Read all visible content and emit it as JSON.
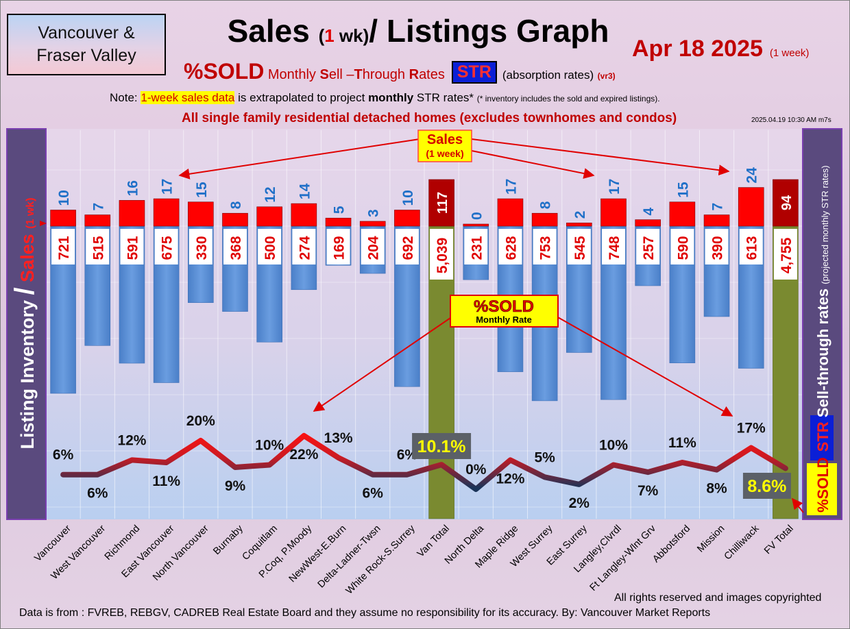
{
  "region_label": "Vancouver & Fraser Valley",
  "title": {
    "part1": "Sales ",
    "part2_open": "(",
    "part2_num": "1",
    "part2_close": " wk)",
    "part3": "/ Listings Graph"
  },
  "date": "Apr 18  2025",
  "date_note": "(1 week)",
  "subtitle": {
    "sold": "%SOLD",
    "text_a": " Monthly ",
    "text_b": "S",
    "text_c": "ell –",
    "text_d": "T",
    "text_e": "hrough ",
    "text_f": "R",
    "text_g": "ates",
    "str": "STR",
    "absorption": "(absorption rates)",
    "version": "(vr3)"
  },
  "note": {
    "label": "Note: ",
    "highlight": "1-week sales data",
    "text1": " is extrapolated to project ",
    "bold": "monthly",
    "text2": " STR rates* ",
    "small": "(* inventory includes the sold and expired listings)."
  },
  "headline": "All single family residential detached homes (excludes townhomes and condos)",
  "timestamp": "2025.04.19 10:30 AM m7s",
  "footer": {
    "rights": "All rights reserved and  images copyrighted",
    "source": "Data is from : FVREB, REBGV, CADREB Real Estate Board and they assume no responsibility for its accuracy. By: Vancouver Market Reports"
  },
  "colors": {
    "inventory_bar": "#5b8fd6",
    "total_bar": "#7a8a30",
    "sales_bar": "#ff0000",
    "sales_total_bar": "#b00000",
    "line_high": "#ff1010",
    "line_low": "#1a3358",
    "side_panel": "#5a4a7e"
  },
  "chart_data": {
    "type": "bar",
    "categories": [
      "Vancouver",
      "West Vancouver",
      "Richmond",
      "East Vancouver",
      "North Vancouver",
      "Burnaby",
      "Coquitlam",
      "P.Coq, P.Moody",
      "NewWest-E.Burn",
      "Delta-Ladner-Twsn",
      "White Rock-S.Surrey",
      "Van Total",
      "North Delta",
      "Maple Ridge",
      "West Surrey",
      "East Surrey",
      "Langley,Clvrdl",
      "Ft Langley-Wlnt Grv",
      "Abbotsford",
      "Mission",
      "Chilliwack",
      "FV Total"
    ],
    "series": [
      {
        "name": "Sales",
        "values": [
          10,
          7,
          16,
          17,
          15,
          8,
          12,
          14,
          5,
          3,
          10,
          117,
          0,
          17,
          8,
          2,
          17,
          4,
          15,
          7,
          24,
          94
        ]
      },
      {
        "name": "Listing Inventory",
        "values": [
          "721",
          "515",
          "591",
          "675",
          "330",
          "368",
          "500",
          "274",
          "169",
          "204",
          "692",
          "5,039",
          "231",
          "628",
          "753",
          "545",
          "748",
          "257",
          "590",
          "390",
          "613",
          "4,755"
        ]
      },
      {
        "name": "%SOLD",
        "values": [
          "6%",
          "6%",
          "12%",
          "11%",
          "20%",
          "9%",
          "10%",
          "22%",
          "13%",
          "6%",
          "6%",
          "10.1%",
          "0%",
          "12%",
          "5%",
          "2%",
          "10%",
          "7%",
          "11%",
          "8%",
          "17%",
          "8.6%"
        ]
      }
    ],
    "sold_pct": [
      6,
      6,
      12,
      11,
      20,
      9,
      10,
      22,
      13,
      6,
      6,
      10.1,
      0,
      12,
      5,
      2,
      10,
      7,
      11,
      8,
      17,
      8.6
    ],
    "ylabel_left_a": "Listing Inventory ",
    "ylabel_left_slash": "/",
    "ylabel_left_b": " Sales ",
    "ylabel_left_c": "(1 wk)",
    "ylabel_right_a": "%SOLD",
    "ylabel_right_str": "STR",
    "ylabel_right_b": " Sell-through rates ",
    "ylabel_right_c": "(projected monthly STR rates)",
    "annotations": {
      "sales_a": "Sales",
      "sales_b": "(1 week)",
      "sold_a": "%SOLD",
      "sold_b": "Monthly Rate"
    }
  }
}
